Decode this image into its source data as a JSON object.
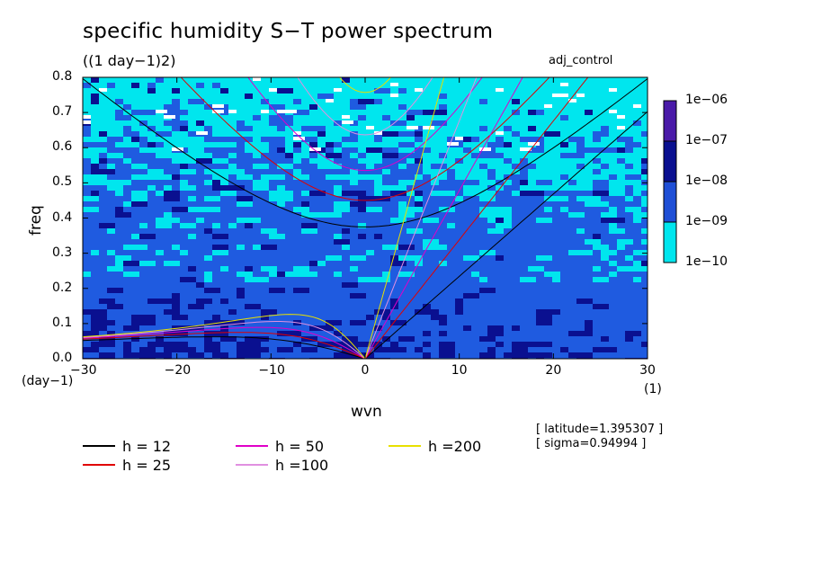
{
  "title": "specific humidity S−T power spectrum",
  "units_label": "((1 day−1)2)",
  "experiment": "adj_control",
  "info": [
    "[ latitude=1.395307 ]",
    "[ sigma=0.94994 ]"
  ],
  "chart_data": {
    "type": "heatmap",
    "xlabel": "wvn",
    "ylabel": "freq",
    "xlim": [
      -30,
      30
    ],
    "ylim": [
      0,
      0.8
    ],
    "x_ticks": [
      "−30",
      "−20",
      "−10",
      "0",
      "10",
      "20",
      "30"
    ],
    "y_ticks": [
      "0.0",
      "0.1",
      "0.2",
      "0.3",
      "0.4",
      "0.5",
      "0.6",
      "0.7",
      "0.8"
    ],
    "x_unit": "(1)",
    "y_unit": "(day−1)",
    "colorbar": {
      "levels": [
        "1e−06",
        "1e−07",
        "1e−08",
        "1e−09",
        "1e−10"
      ],
      "colors": [
        "#4a1aa8",
        "#0a1090",
        "#1f4fd6",
        "#00e6ee"
      ]
    },
    "field_colors": {
      "white": "#ffffff",
      "cyan": "#00e6ee",
      "blue": "#1f5be0",
      "dark": "#0a1090"
    },
    "dispersion_curves": [
      {
        "label": "h = 12",
        "h": 12,
        "color": "#000000"
      },
      {
        "label": "h = 25",
        "h": 25,
        "color": "#e00000"
      },
      {
        "label": "h = 50",
        "h": 50,
        "color": "#e000c8"
      },
      {
        "label": "h =100",
        "h": 100,
        "color": "#e090e0"
      },
      {
        "label": "h =200",
        "h": 200,
        "color": "#e8e000"
      }
    ]
  }
}
